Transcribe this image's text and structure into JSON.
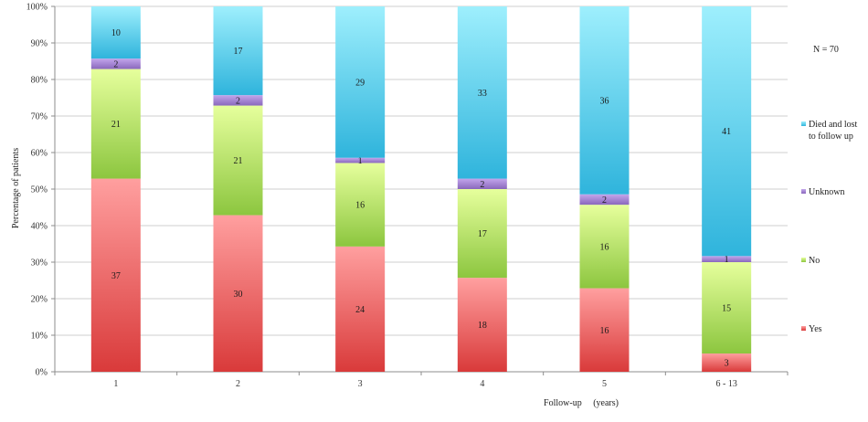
{
  "chart_data": {
    "type": "bar",
    "stacked": true,
    "normalized": true,
    "categories": [
      "1",
      "2",
      "3",
      "4",
      "5",
      "6 - 13"
    ],
    "series": [
      {
        "name": "Yes",
        "values": [
          37,
          30,
          24,
          18,
          16,
          3
        ],
        "color": "#e85a5a"
      },
      {
        "name": "No",
        "values": [
          21,
          21,
          16,
          17,
          16,
          15
        ],
        "color": "#a8d84e"
      },
      {
        "name": "Unknown",
        "values": [
          2,
          2,
          1,
          2,
          2,
          1
        ],
        "color": "#9b78c8"
      },
      {
        "name": "Died and lost to follow up",
        "values": [
          10,
          17,
          29,
          33,
          36,
          41
        ],
        "color": "#4cc4e4"
      }
    ],
    "xlabel": "Follow-up     (years)",
    "ylabel": "Percentage of patients",
    "ylim": [
      0,
      100
    ],
    "yticks": [
      "0%",
      "10%",
      "20%",
      "30%",
      "40%",
      "50%",
      "60%",
      "70%",
      "80%",
      "90%",
      "100%"
    ],
    "grid": true,
    "legend_position": "right",
    "legend_order": [
      "Died and lost to follow up",
      "Unknown",
      "No",
      "Yes"
    ],
    "annotation": "N = 70"
  }
}
